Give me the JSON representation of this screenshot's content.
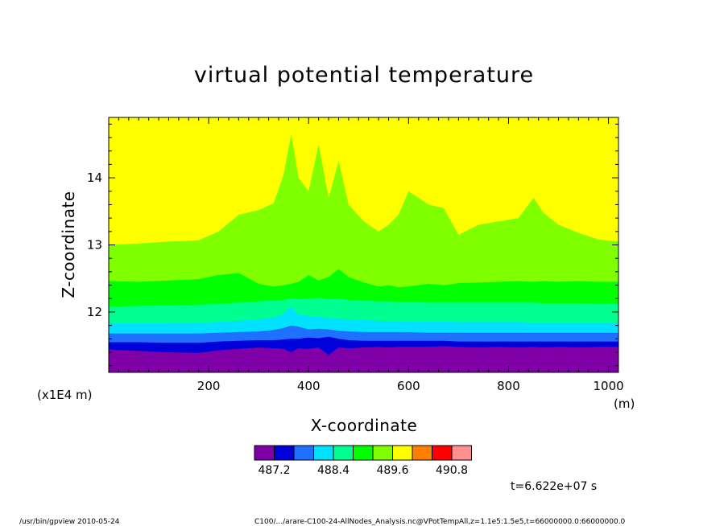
{
  "chart_data": {
    "type": "contour",
    "title": "virtual potential temperature",
    "xlabel": "X-coordinate",
    "ylabel": "Z-coordinate",
    "x_unit": "(m)",
    "y_scale_note": "(x1E4 m)",
    "xlim": [
      0,
      1020
    ],
    "ylim": [
      11.1,
      14.9
    ],
    "x_ticks": [
      200,
      400,
      600,
      800,
      1000
    ],
    "y_ticks": [
      12,
      13,
      14
    ],
    "x_tick_labels": [
      "200",
      "400",
      "600",
      "800",
      "1000"
    ],
    "y_tick_labels": [
      "12",
      "13",
      "14"
    ],
    "levels": [
      486.8,
      487.2,
      487.6,
      488.0,
      488.4,
      488.8,
      489.2,
      489.6,
      490.0,
      490.4,
      490.8,
      491.2
    ],
    "level_colors": [
      "#8000a8",
      "#0000d8",
      "#2070ff",
      "#00e0ff",
      "#00ff90",
      "#00ff00",
      "#80ff00",
      "#ffff00",
      "#ff8000",
      "#ff0000",
      "#ff9090"
    ],
    "legend_labels": [
      "487.2",
      "488.4",
      "489.6",
      "490.8"
    ],
    "time": "t=6.622e+07 s",
    "contours_x": [
      0,
      60,
      120,
      180,
      220,
      260,
      300,
      330,
      350,
      365,
      380,
      400,
      420,
      440,
      460,
      480,
      510,
      540,
      560,
      580,
      600,
      640,
      670,
      700,
      740,
      780,
      820,
      850,
      870,
      900,
      940,
      980,
      1020
    ],
    "contours": [
      {
        "level": 487.6,
        "z": [
          11.44,
          11.42,
          11.4,
          11.39,
          11.43,
          11.45,
          11.47,
          11.46,
          11.45,
          11.4,
          11.46,
          11.45,
          11.47,
          11.36,
          11.47,
          11.46,
          11.47,
          11.48,
          11.47,
          11.48,
          11.48,
          11.48,
          11.49,
          11.48,
          11.47,
          11.48,
          11.47,
          11.48,
          11.47,
          11.48,
          11.47,
          11.48,
          11.48
        ]
      },
      {
        "level": 488.0,
        "z": [
          11.55,
          11.55,
          11.54,
          11.54,
          11.56,
          11.57,
          11.58,
          11.58,
          11.59,
          11.6,
          11.6,
          11.62,
          11.61,
          11.63,
          11.6,
          11.58,
          11.57,
          11.57,
          11.57,
          11.57,
          11.57,
          11.57,
          11.57,
          11.56,
          11.56,
          11.56,
          11.56,
          11.56,
          11.56,
          11.56,
          11.56,
          11.56,
          11.56
        ]
      },
      {
        "level": 488.4,
        "z": [
          11.68,
          11.68,
          11.68,
          11.68,
          11.69,
          11.7,
          11.71,
          11.73,
          11.76,
          11.8,
          11.78,
          11.74,
          11.75,
          11.74,
          11.72,
          11.71,
          11.7,
          11.7,
          11.7,
          11.7,
          11.7,
          11.69,
          11.69,
          11.69,
          11.69,
          11.69,
          11.69,
          11.69,
          11.69,
          11.69,
          11.69,
          11.69,
          11.69
        ]
      },
      {
        "level": 488.8,
        "z": [
          11.83,
          11.83,
          11.84,
          11.84,
          11.85,
          11.87,
          11.89,
          11.92,
          11.97,
          12.08,
          11.96,
          11.94,
          11.93,
          11.91,
          11.9,
          11.89,
          11.88,
          11.87,
          11.86,
          11.86,
          11.86,
          11.86,
          11.86,
          11.85,
          11.85,
          11.85,
          11.85,
          11.84,
          11.84,
          11.84,
          11.84,
          11.84,
          11.84
        ]
      },
      {
        "level": 489.2,
        "z": [
          12.08,
          12.09,
          12.1,
          12.11,
          12.12,
          12.14,
          12.16,
          12.17,
          12.18,
          12.2,
          12.19,
          12.2,
          12.21,
          12.19,
          12.2,
          12.18,
          12.17,
          12.16,
          12.16,
          12.15,
          12.15,
          12.14,
          12.14,
          12.14,
          12.14,
          12.14,
          12.14,
          12.14,
          12.13,
          12.13,
          12.13,
          12.12,
          12.12
        ]
      },
      {
        "level": 489.6,
        "z": [
          12.46,
          12.45,
          12.47,
          12.49,
          12.55,
          12.58,
          12.42,
          12.38,
          12.4,
          12.42,
          12.45,
          12.55,
          12.47,
          12.52,
          12.64,
          12.52,
          12.44,
          12.38,
          12.4,
          12.37,
          12.38,
          12.42,
          12.4,
          12.43,
          12.44,
          12.45,
          12.46,
          12.45,
          12.46,
          12.45,
          12.46,
          12.45,
          12.45
        ]
      },
      {
        "level": 490.0,
        "z": [
          13.0,
          13.02,
          13.05,
          13.07,
          13.2,
          13.45,
          13.52,
          13.62,
          14.05,
          14.65,
          14.0,
          13.8,
          14.5,
          13.7,
          14.25,
          13.6,
          13.35,
          13.2,
          13.3,
          13.45,
          13.8,
          13.6,
          13.55,
          13.15,
          13.3,
          13.35,
          13.4,
          13.7,
          13.48,
          13.3,
          13.18,
          13.08,
          13.05
        ]
      }
    ]
  },
  "footer": {
    "program": "/usr/bin/gpview  2010-05-24",
    "source": "C100/.../arare-C100-24-AllNodes_Analysis.nc@VPotTempAll,z=1.1e5:1.5e5,t=66000000.0:66000000.0"
  }
}
